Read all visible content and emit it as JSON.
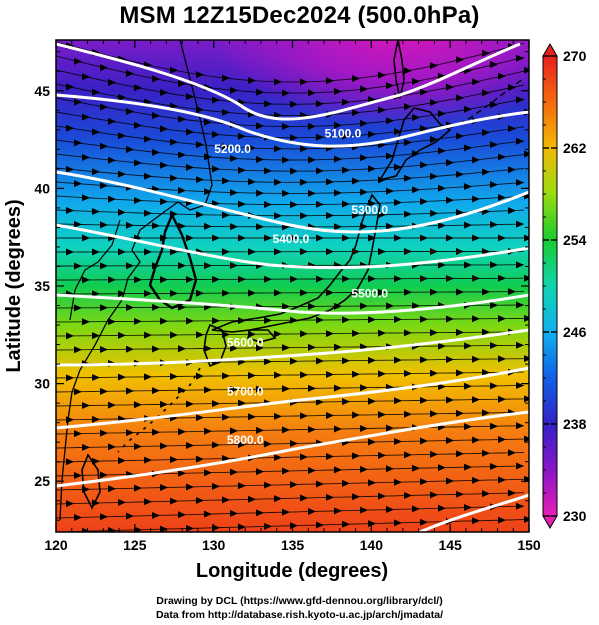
{
  "title": "MSM 12Z15Dec2024 (500.0hPa)",
  "map": {
    "xlabel": "Longitude (degrees)",
    "ylabel": "Latitude  (degrees)",
    "x_ticks": [
      "120",
      "125",
      "130",
      "135",
      "140",
      "145",
      "150"
    ],
    "y_ticks": [
      "25",
      "30",
      "35",
      "40",
      "45"
    ],
    "x_range": [
      120,
      150
    ],
    "y_range": [
      22.4,
      47.6
    ],
    "contour_labels": [
      {
        "text": "5100.0",
        "lon": 138.2,
        "lat": 42.6
      },
      {
        "text": "5200.0",
        "lon": 131.2,
        "lat": 41.8
      },
      {
        "text": "5300.0",
        "lon": 139.9,
        "lat": 38.7
      },
      {
        "text": "5400.0",
        "lon": 134.9,
        "lat": 37.2
      },
      {
        "text": "5500.0",
        "lon": 139.9,
        "lat": 34.4
      },
      {
        "text": "5600.0",
        "lon": 132.0,
        "lat": 31.9
      },
      {
        "text": "5700.0",
        "lon": 132.0,
        "lat": 29.4
      },
      {
        "text": "5800.0",
        "lon": 132.0,
        "lat": 26.9
      }
    ],
    "colors": {
      "contour": "#ffffff",
      "streamline": "#000000",
      "coast": "#000000"
    }
  },
  "colorbar": {
    "min": 230,
    "max": 270,
    "labels": [
      "270",
      "262",
      "254",
      "246",
      "238",
      "230"
    ]
  },
  "footer": {
    "line1": "Drawing by DCL (https://www.gfd-dennou.org/library/dcl/)",
    "line2": "Data from http://database.rish.kyoto-u.ac.jp/arch/jmadata/"
  }
}
